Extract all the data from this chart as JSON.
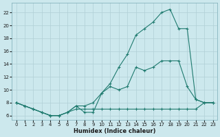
{
  "xlabel": "Humidex (Indice chaleur)",
  "bg_color": "#cce8ed",
  "grid_color": "#b0cfd6",
  "line_color": "#1e7a6e",
  "x_ticks": [
    0,
    1,
    2,
    3,
    4,
    5,
    6,
    7,
    8,
    9,
    10,
    11,
    12,
    13,
    14,
    15,
    16,
    17,
    18,
    19,
    20,
    21,
    22,
    23
  ],
  "y_ticks": [
    6,
    8,
    10,
    12,
    14,
    16,
    18,
    20,
    22
  ],
  "ylim": [
    5.3,
    23.5
  ],
  "xlim": [
    -0.5,
    23.5
  ],
  "line1_x": [
    0,
    1,
    2,
    3,
    4,
    5,
    6,
    7,
    8,
    9,
    10,
    11,
    12,
    13,
    14,
    15,
    16,
    17,
    18,
    19,
    20,
    21,
    22,
    23
  ],
  "line1_y": [
    8.0,
    7.5,
    7.0,
    6.5,
    6.0,
    6.0,
    6.5,
    7.0,
    7.0,
    7.0,
    7.0,
    7.0,
    7.0,
    7.0,
    7.0,
    7.0,
    7.0,
    7.0,
    7.0,
    7.0,
    7.0,
    7.0,
    8.0,
    8.0
  ],
  "line2_x": [
    0,
    1,
    2,
    3,
    4,
    5,
    6,
    7,
    8,
    9,
    10,
    11,
    12,
    13,
    14,
    15,
    16,
    17,
    18,
    19,
    20,
    21,
    22,
    23
  ],
  "line2_y": [
    8.0,
    7.5,
    7.0,
    6.5,
    6.0,
    6.0,
    6.5,
    7.5,
    7.5,
    8.0,
    9.5,
    11.0,
    13.5,
    15.5,
    18.5,
    19.5,
    20.5,
    22.0,
    22.5,
    19.5,
    19.5,
    8.5,
    8.0,
    8.0
  ],
  "line3_x": [
    0,
    1,
    2,
    3,
    4,
    5,
    6,
    7,
    8,
    9,
    10,
    11,
    12,
    13,
    14,
    15,
    16,
    17,
    18,
    19,
    20,
    21,
    22,
    23
  ],
  "line3_y": [
    8.0,
    7.5,
    7.0,
    6.5,
    6.0,
    6.0,
    6.5,
    7.5,
    6.5,
    6.5,
    9.5,
    10.5,
    10.0,
    10.5,
    13.5,
    13.0,
    13.5,
    14.5,
    14.5,
    14.5,
    10.5,
    8.5,
    8.0,
    8.0
  ]
}
